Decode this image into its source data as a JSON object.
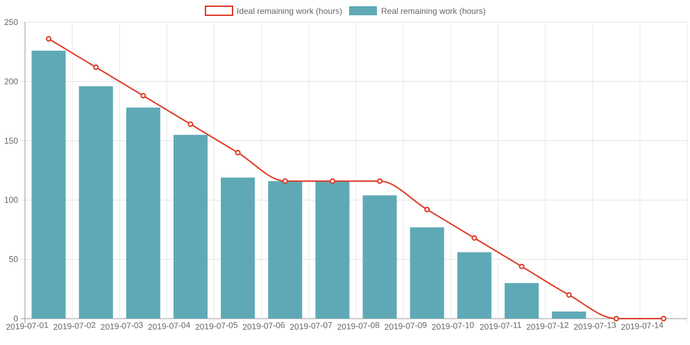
{
  "chart_data": {
    "type": "bar",
    "categories": [
      "2019-07-01",
      "2019-07-02",
      "2019-07-03",
      "2019-07-04",
      "2019-07-05",
      "2019-07-06",
      "2019-07-07",
      "2019-07-08",
      "2019-07-09",
      "2019-07-10",
      "2019-07-11",
      "2019-07-12",
      "2019-07-13",
      "2019-07-14"
    ],
    "series": [
      {
        "name": "Ideal remaining work (hours)",
        "type": "line",
        "color": "#dc3c28",
        "values": [
          236,
          212,
          188,
          164,
          140,
          116,
          116,
          116,
          92,
          68,
          44,
          20,
          0,
          0
        ]
      },
      {
        "name": "Real remaining work (hours)",
        "type": "bar",
        "color": "#5fa9b7",
        "values": [
          226,
          196,
          178,
          155,
          119,
          116,
          116,
          104,
          77,
          56,
          30,
          6,
          null,
          null
        ]
      }
    ],
    "ylim": [
      0,
      250
    ],
    "yticks": [
      "0",
      "50",
      "100",
      "150",
      "200",
      "250"
    ],
    "grid": true,
    "legend_position": "top-center"
  }
}
